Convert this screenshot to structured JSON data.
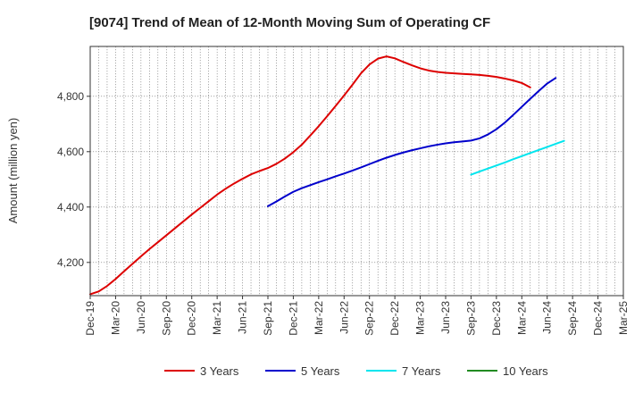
{
  "chart_data": {
    "type": "line",
    "title": "[9074]  Trend of Mean of 12-Month Moving Sum of Operating CF",
    "xlabel": "",
    "ylabel": "Amount (million yen)",
    "ylim": [
      4080,
      4980
    ],
    "yticks": [
      4200,
      4400,
      4600,
      4800
    ],
    "ytick_labels": [
      "4,200",
      "4,400",
      "4,600",
      "4,800"
    ],
    "x_start": "Dec-19",
    "x_ticks": [
      "Dec-19",
      "Mar-20",
      "Jun-20",
      "Sep-20",
      "Dec-20",
      "Mar-21",
      "Jun-21",
      "Sep-21",
      "Dec-21",
      "Mar-22",
      "Jun-22",
      "Sep-22",
      "Dec-22",
      "Mar-23",
      "Jun-23",
      "Sep-23",
      "Dec-23",
      "Mar-24",
      "Jun-24",
      "Sep-24",
      "Dec-24",
      "Mar-25"
    ],
    "tick_step_months": 3,
    "x_max_index": 63,
    "grid": true,
    "legend_position": "bottom",
    "series": [
      {
        "name": "3 Years",
        "color": "#dd0000",
        "start_index": 0,
        "values": [
          4085,
          4095,
          4115,
          4140,
          4168,
          4195,
          4222,
          4248,
          4273,
          4298,
          4323,
          4348,
          4373,
          4397,
          4421,
          4445,
          4466,
          4485,
          4502,
          4518,
          4530,
          4541,
          4556,
          4575,
          4598,
          4625,
          4658,
          4692,
          4728,
          4765,
          4803,
          4842,
          4883,
          4915,
          4936,
          4944,
          4937,
          4924,
          4912,
          4901,
          4893,
          4888,
          4885,
          4883,
          4881,
          4879,
          4877,
          4874,
          4870,
          4864,
          4857,
          4848,
          4832
        ]
      },
      {
        "name": "5 Years",
        "color": "#0000cc",
        "start_index": 21,
        "values": [
          4403,
          4420,
          4438,
          4455,
          4468,
          4479,
          4490,
          4500,
          4511,
          4521,
          4532,
          4543,
          4555,
          4567,
          4578,
          4588,
          4597,
          4605,
          4612,
          4619,
          4625,
          4630,
          4634,
          4637,
          4640,
          4648,
          4662,
          4681,
          4705,
          4733,
          4762,
          4791,
          4819,
          4846,
          4866
        ]
      },
      {
        "name": "7 Years",
        "color": "#00e5ee",
        "start_index": 45,
        "values": [
          4517,
          4528,
          4539,
          4550,
          4561,
          4573,
          4584,
          4595,
          4606,
          4617,
          4628,
          4639
        ]
      },
      {
        "name": "10 Years",
        "color": "#228b22",
        "start_index": 0,
        "values": []
      }
    ]
  }
}
